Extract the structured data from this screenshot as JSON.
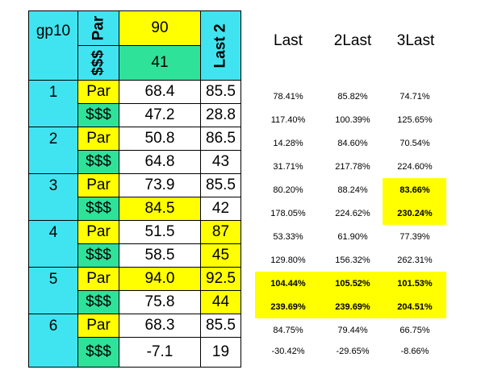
{
  "header": {
    "corner": "gp10",
    "par_label": "Par",
    "money_label": "$$$",
    "par_value": "90",
    "money_value": "41",
    "last2_label": "Last 2"
  },
  "columns": [
    "Last",
    "2Last",
    "3Last"
  ],
  "rows": [
    {
      "group": "1",
      "type": "Par",
      "val": "68.4",
      "last2": "85.5",
      "p1": "78.41%",
      "p2": "85.82%",
      "p3": "74.71%"
    },
    {
      "group": "",
      "type": "$$$",
      "val": "47.2",
      "last2": "28.8",
      "p1": "117.40%",
      "p2": "100.39%",
      "p3": "125.65%"
    },
    {
      "group": "2",
      "type": "Par",
      "val": "50.8",
      "last2": "86.5",
      "p1": "14.28%",
      "p2": "84.60%",
      "p3": "70.54%"
    },
    {
      "group": "",
      "type": "$$$",
      "val": "64.8",
      "last2": "43",
      "p1": "31.71%",
      "p2": "217.78%",
      "p3": "224.60%"
    },
    {
      "group": "3",
      "type": "Par",
      "val": "73.9",
      "last2": "85.5",
      "p1": "80.20%",
      "p2": "88.24%",
      "p3": "83.66%"
    },
    {
      "group": "",
      "type": "$$$",
      "val": "84.5",
      "last2": "42",
      "p1": "178.05%",
      "p2": "224.62%",
      "p3": "230.24%"
    },
    {
      "group": "4",
      "type": "Par",
      "val": "51.5",
      "last2": "87",
      "p1": "53.33%",
      "p2": "61.90%",
      "p3": "77.39%"
    },
    {
      "group": "",
      "type": "$$$",
      "val": "58.5",
      "last2": "45",
      "p1": "129.80%",
      "p2": "156.32%",
      "p3": "262.31%"
    },
    {
      "group": "5",
      "type": "Par",
      "val": "94.0",
      "last2": "92.5",
      "p1": "104.44%",
      "p2": "105.52%",
      "p3": "101.53%"
    },
    {
      "group": "",
      "type": "$$$",
      "val": "75.8",
      "last2": "44",
      "p1": "239.69%",
      "p2": "239.69%",
      "p3": "204.51%"
    },
    {
      "group": "6",
      "type": "Par",
      "val": "68.3",
      "last2": "85.5",
      "p1": "84.75%",
      "p2": "79.44%",
      "p3": "66.75%"
    },
    {
      "group": "",
      "type": "$$$",
      "val": "-7.1",
      "last2": "19",
      "p1": "-30.42%",
      "p2": "-29.65%",
      "p3": "-8.66%"
    }
  ],
  "highlight_color": "#ffff00"
}
